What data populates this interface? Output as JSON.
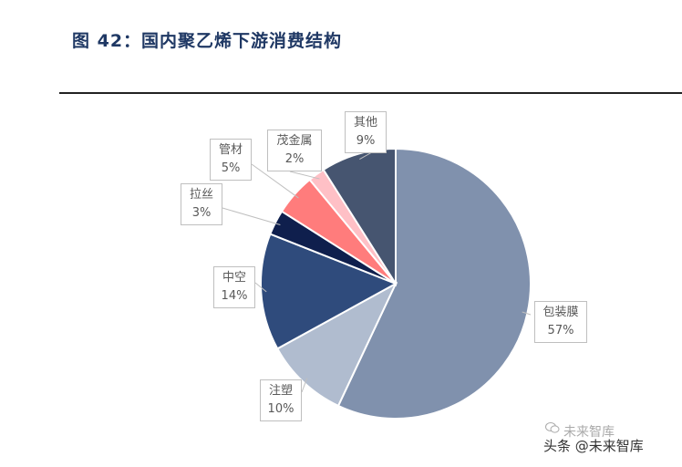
{
  "figure": {
    "title": "图 42：国内聚乙烯下游消费结构"
  },
  "chart_data": {
    "type": "pie",
    "title": "",
    "slices": [
      {
        "label": "包装膜",
        "value": 57,
        "percent_label": "57%",
        "color": "#8091ad"
      },
      {
        "label": "注塑",
        "value": 10,
        "percent_label": "10%",
        "color": "#b0bccf"
      },
      {
        "label": "中空",
        "value": 14,
        "percent_label": "14%",
        "color": "#2f4b7c"
      },
      {
        "label": "拉丝",
        "value": 3,
        "percent_label": "3%",
        "color": "#0f1f4d"
      },
      {
        "label": "管材",
        "value": 5,
        "percent_label": "5%",
        "color": "#ff7c7c"
      },
      {
        "label": "茂金属",
        "value": 2,
        "percent_label": "2%",
        "color": "#ffc0c6"
      },
      {
        "label": "其他",
        "value": 9,
        "percent_label": "9%",
        "color": "#465570"
      }
    ],
    "legend": "none",
    "data_labels": "callouts"
  },
  "watermark": {
    "text": "头条 @未来智库",
    "ghost_text": "未来智库"
  }
}
